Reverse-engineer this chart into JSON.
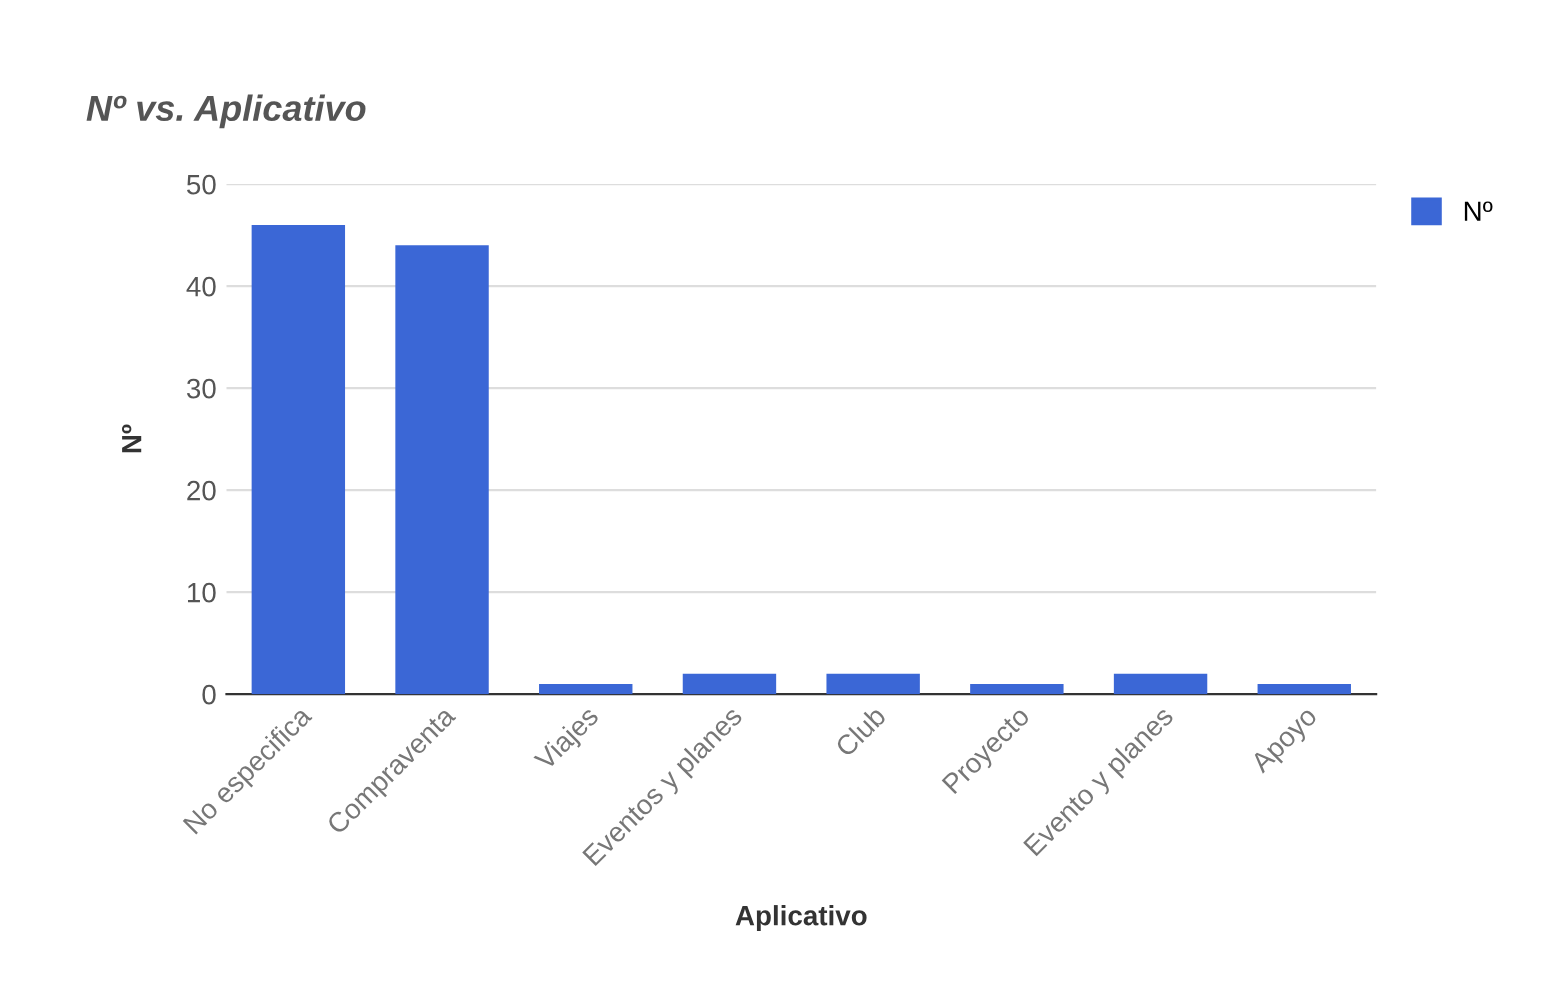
{
  "chart_data": {
    "type": "bar",
    "title": "Nº vs. Aplicativo",
    "xlabel": "Aplicativo",
    "ylabel": "Nº",
    "categories": [
      "No especifica",
      "Compraventa",
      "Viajes",
      "Eventos y planes",
      "Club",
      "Proyecto",
      "Evento y planes",
      "Apoyo"
    ],
    "series": [
      {
        "name": "Nº",
        "color": "#3b67d6",
        "values": [
          46,
          44,
          1,
          2,
          2,
          1,
          2,
          1
        ]
      }
    ],
    "ylim": [
      0,
      50
    ],
    "yticks": [
      0,
      10,
      20,
      30,
      40,
      50
    ],
    "grid": "y",
    "legend": "top right"
  }
}
